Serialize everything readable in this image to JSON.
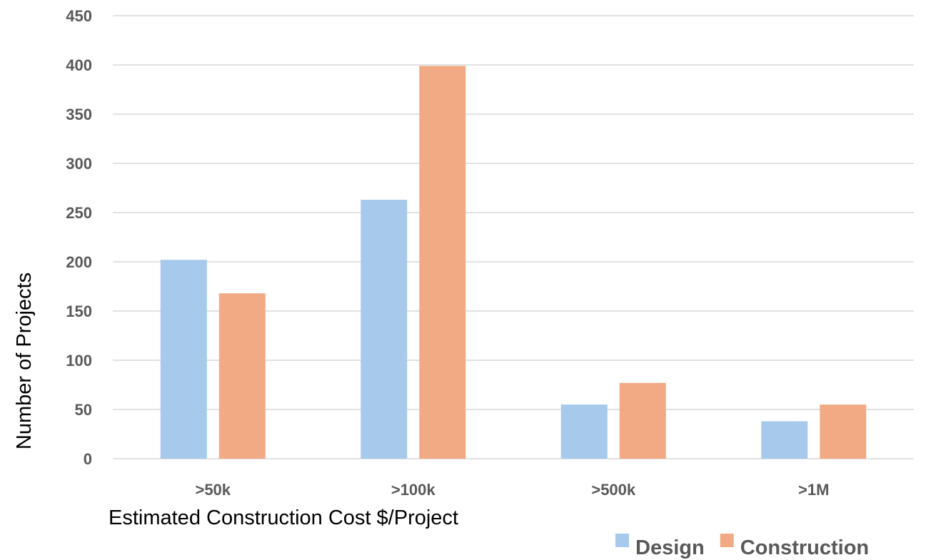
{
  "chart_data": {
    "type": "bar",
    "categories": [
      ">50k",
      ">100k",
      ">500k",
      ">1M"
    ],
    "series": [
      {
        "name": "Design",
        "values": [
          202,
          263,
          55,
          38
        ],
        "color": "#a6c9ec"
      },
      {
        "name": "Construction",
        "values": [
          168,
          399,
          77,
          55
        ],
        "color": "#f2aa84"
      }
    ],
    "xlabel": "Estimated Construction Cost $/Project",
    "ylabel": "Number of Projects",
    "ylim": [
      0,
      450
    ],
    "yticks": [
      0,
      50,
      100,
      150,
      200,
      250,
      300,
      350,
      400,
      450
    ],
    "grid": true,
    "legend_position": "bottom-right"
  }
}
